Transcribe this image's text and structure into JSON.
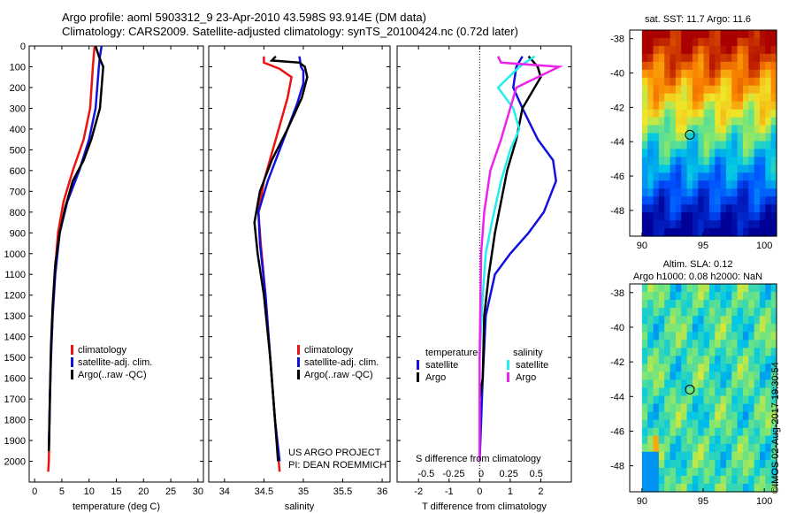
{
  "header": {
    "title_line1": "Argo profile: aoml 5903312_9 23-Apr-2010 43.598S 93.914E (DM data)",
    "title_line2": "Climatology: CARS2009. Satellite-adjusted climatology: synTS_20100424.nc (0.72d later)"
  },
  "footer": {
    "credit": "©IMOS 02-Aug-2017 19:30:54",
    "project_line1": "US ARGO PROJECT",
    "project_line2": "PI: DEAN ROEMMICH"
  },
  "colors": {
    "climatology": "#ee1111",
    "satellite": "#1111dd",
    "argo": "#000000",
    "cyan": "#22eeee",
    "magenta": "#ee22ee"
  },
  "chart_data": [
    {
      "type": "line",
      "panel": "temperature",
      "xlabel": "temperature (deg C)",
      "ylabel": "",
      "xlim": [
        -1,
        31
      ],
      "ylim": [
        2100,
        0
      ],
      "xticks": [
        0,
        5,
        10,
        15,
        20,
        25,
        30
      ],
      "yticks": [
        0,
        100,
        200,
        300,
        400,
        500,
        600,
        700,
        800,
        900,
        1000,
        1100,
        1200,
        1300,
        1400,
        1500,
        1600,
        1700,
        1800,
        1900,
        2000
      ],
      "legend": [
        "climatology",
        "satellite-adj. clim.",
        "Argo(..raw -QC)"
      ],
      "series": [
        {
          "name": "climatology",
          "points": [
            [
              11,
              0
            ],
            [
              10.7,
              100
            ],
            [
              10.2,
              300
            ],
            [
              9,
              450
            ],
            [
              7,
              600
            ],
            [
              5.3,
              750
            ],
            [
              4.3,
              900
            ],
            [
              3.7,
              1100
            ],
            [
              3.3,
              1300
            ],
            [
              3,
              1500
            ],
            [
              2.8,
              1700
            ],
            [
              2.6,
              2000
            ],
            [
              2.5,
              2050
            ]
          ]
        },
        {
          "name": "satellite-adj. clim.",
          "points": [
            [
              12.3,
              0
            ],
            [
              12,
              50
            ],
            [
              11.8,
              100
            ],
            [
              11.2,
              300
            ],
            [
              10,
              450
            ],
            [
              8.2,
              600
            ],
            [
              6,
              750
            ],
            [
              4.6,
              900
            ],
            [
              3.8,
              1100
            ],
            [
              3.3,
              1300
            ],
            [
              3,
              1500
            ],
            [
              2.8,
              1700
            ],
            [
              2.6,
              1950
            ]
          ]
        },
        {
          "name": "Argo(..raw -QC)",
          "points": [
            [
              11.2,
              0
            ],
            [
              11.8,
              50
            ],
            [
              12.6,
              100
            ],
            [
              12,
              300
            ],
            [
              10.4,
              450
            ],
            [
              9,
              550
            ],
            [
              7,
              650
            ],
            [
              5.6,
              780
            ],
            [
              4.6,
              900
            ],
            [
              3.8,
              1050
            ],
            [
              3.3,
              1250
            ],
            [
              3,
              1450
            ],
            [
              2.8,
              1700
            ],
            [
              2.6,
              1950
            ]
          ]
        }
      ]
    },
    {
      "type": "line",
      "panel": "salinity",
      "xlabel": "salinity",
      "ylabel": "",
      "xlim": [
        33.8,
        36.1
      ],
      "ylim": [
        2100,
        0
      ],
      "xticks": [
        34,
        34.5,
        35,
        35.5,
        36
      ],
      "legend": [
        "climatology",
        "satellite-adj. clim.",
        "Argo(..raw -QC)"
      ],
      "series": [
        {
          "name": "climatology",
          "points": [
            [
              34.5,
              50
            ],
            [
              34.5,
              80
            ],
            [
              34.7,
              110
            ],
            [
              34.85,
              150
            ],
            [
              34.8,
              250
            ],
            [
              34.65,
              450
            ],
            [
              34.5,
              650
            ],
            [
              34.43,
              800
            ],
            [
              34.46,
              950
            ],
            [
              34.52,
              1200
            ],
            [
              34.58,
              1500
            ],
            [
              34.64,
              1800
            ],
            [
              34.7,
              2050
            ]
          ]
        },
        {
          "name": "satellite-adj. clim.",
          "points": [
            [
              34.95,
              50
            ],
            [
              34.97,
              100
            ],
            [
              35.0,
              120
            ],
            [
              35.0,
              180
            ],
            [
              34.92,
              280
            ],
            [
              34.75,
              450
            ],
            [
              34.55,
              650
            ],
            [
              34.43,
              800
            ],
            [
              34.45,
              950
            ],
            [
              34.52,
              1200
            ],
            [
              34.58,
              1500
            ],
            [
              34.64,
              1800
            ],
            [
              34.7,
              2000
            ]
          ]
        },
        {
          "name": "Argo(..raw -QC)",
          "points": [
            [
              34.65,
              50
            ],
            [
              34.6,
              70
            ],
            [
              34.95,
              80
            ],
            [
              35.02,
              100
            ],
            [
              35.05,
              150
            ],
            [
              34.98,
              250
            ],
            [
              34.8,
              400
            ],
            [
              34.6,
              550
            ],
            [
              34.45,
              700
            ],
            [
              34.38,
              850
            ],
            [
              34.42,
              1000
            ],
            [
              34.5,
              1200
            ],
            [
              34.58,
              1500
            ],
            [
              34.64,
              1800
            ],
            [
              34.68,
              2000
            ]
          ]
        }
      ]
    },
    {
      "type": "line",
      "panel": "difference",
      "xlabel": "T difference from climatology",
      "ylabel": "",
      "xlabel_top": "S difference from climatology",
      "xlim": [
        -2.7,
        3.0
      ],
      "ylim": [
        2100,
        0
      ],
      "xticks": [
        -2,
        -1,
        0,
        1,
        2
      ],
      "xticks_s": [
        "-0.5",
        "-0.25",
        "0",
        "0.25",
        "0.5"
      ],
      "legend_titles": [
        "temperature",
        "salinity"
      ],
      "legend": [
        "satellite",
        "Argo",
        "satellite",
        "Argo"
      ],
      "series": [
        {
          "name": "satellite",
          "quantity": "temperature",
          "points": [
            [
              1.4,
              50
            ],
            [
              1.2,
              100
            ],
            [
              1.1,
              200
            ],
            [
              1.4,
              300
            ],
            [
              1.9,
              450
            ],
            [
              2.4,
              550
            ],
            [
              2.5,
              650
            ],
            [
              2.1,
              800
            ],
            [
              1.6,
              900
            ],
            [
              1.0,
              1000
            ],
            [
              0.5,
              1100
            ],
            [
              0.2,
              1300
            ],
            [
              0.1,
              1600
            ],
            [
              0,
              2000
            ]
          ]
        },
        {
          "name": "Argo",
          "quantity": "temperature",
          "points": [
            [
              1.6,
              50
            ],
            [
              1.9,
              100
            ],
            [
              2.0,
              150
            ],
            [
              1.4,
              300
            ],
            [
              1.2,
              450
            ],
            [
              0.9,
              600
            ],
            [
              0.7,
              750
            ],
            [
              0.5,
              900
            ],
            [
              0.3,
              1100
            ],
            [
              0.15,
              1300
            ],
            [
              0.1,
              1600
            ],
            [
              0,
              1700
            ],
            [
              0,
              2000
            ]
          ]
        },
        {
          "name": "satellite",
          "quantity": "salinity",
          "points": [
            [
              1.8,
              50
            ],
            [
              1.3,
              100
            ],
            [
              0.6,
              200
            ],
            [
              1.1,
              300
            ],
            [
              1.3,
              400
            ],
            [
              1.0,
              500
            ],
            [
              0.7,
              650
            ],
            [
              0.4,
              850
            ],
            [
              0.2,
              1000
            ],
            [
              0.1,
              1200
            ],
            [
              0,
              1500
            ],
            [
              0,
              2000
            ]
          ]
        },
        {
          "name": "Argo",
          "quantity": "salinity",
          "points": [
            [
              0.6,
              50
            ],
            [
              0.7,
              80
            ],
            [
              2.6,
              100
            ],
            [
              1.2,
              200
            ],
            [
              0.9,
              350
            ],
            [
              0.7,
              450
            ],
            [
              0.35,
              600
            ],
            [
              0.15,
              800
            ],
            [
              0.05,
              1000
            ],
            [
              0,
              1500
            ],
            [
              0,
              2000
            ]
          ]
        }
      ]
    },
    {
      "type": "heatmap",
      "panel": "sst-map",
      "title": "sat. SST: 11.7 Argo: 11.6",
      "xlim": [
        89,
        101
      ],
      "ylim": [
        -49.5,
        -37.5
      ],
      "xticks": [
        90,
        95,
        100
      ],
      "yticks": [
        -38,
        -40,
        -42,
        -44,
        -46,
        -48
      ],
      "marker": [
        93.914,
        -43.598
      ]
    },
    {
      "type": "heatmap",
      "panel": "sla-map",
      "title": "Altim. SLA: 0.12",
      "title2": "Argo h1000: 0.08 h2000: NaN",
      "xlim": [
        89,
        101
      ],
      "ylim": [
        -49.5,
        -37.5
      ],
      "xticks": [
        90,
        95,
        100
      ],
      "yticks": [
        -38,
        -40,
        -42,
        -44,
        -46,
        -48
      ],
      "marker": [
        93.914,
        -43.598
      ]
    }
  ]
}
